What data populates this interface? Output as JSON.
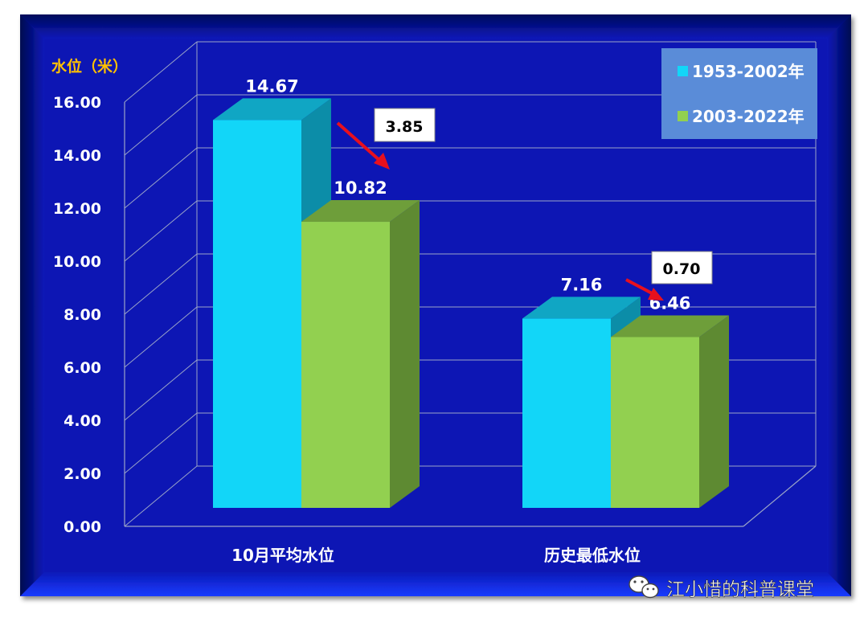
{
  "chart_data": {
    "type": "bar",
    "ylabel": "水位（米）",
    "categories": [
      "10月平均水位",
      "历史最低水位"
    ],
    "series": [
      {
        "name": "1953-2002年",
        "values": [
          14.67,
          7.16
        ],
        "color": "#12D6F8"
      },
      {
        "name": "2003-2022年",
        "values": [
          10.82,
          6.46
        ],
        "color": "#92D050"
      }
    ],
    "ylim": [
      0,
      16
    ],
    "y_ticks": [
      "0.00",
      "2.00",
      "4.00",
      "6.00",
      "8.00",
      "10.00",
      "12.00",
      "14.00",
      "16.00"
    ],
    "data_labels": [
      [
        "14.67",
        "7.16"
      ],
      [
        "10.82",
        "6.46"
      ]
    ],
    "differences": [
      "3.85",
      "0.70"
    ],
    "grid": true,
    "legend_position": "top-right"
  },
  "colors": {
    "background": "#0A16B4",
    "frame_dark": "#030C7A",
    "ylabel": "#FFC000",
    "legend_bg": "#5A8CD8",
    "arrow": "#E8101E"
  },
  "watermark": {
    "icon": "wechat-icon",
    "text": "江小惜的科普课堂"
  }
}
